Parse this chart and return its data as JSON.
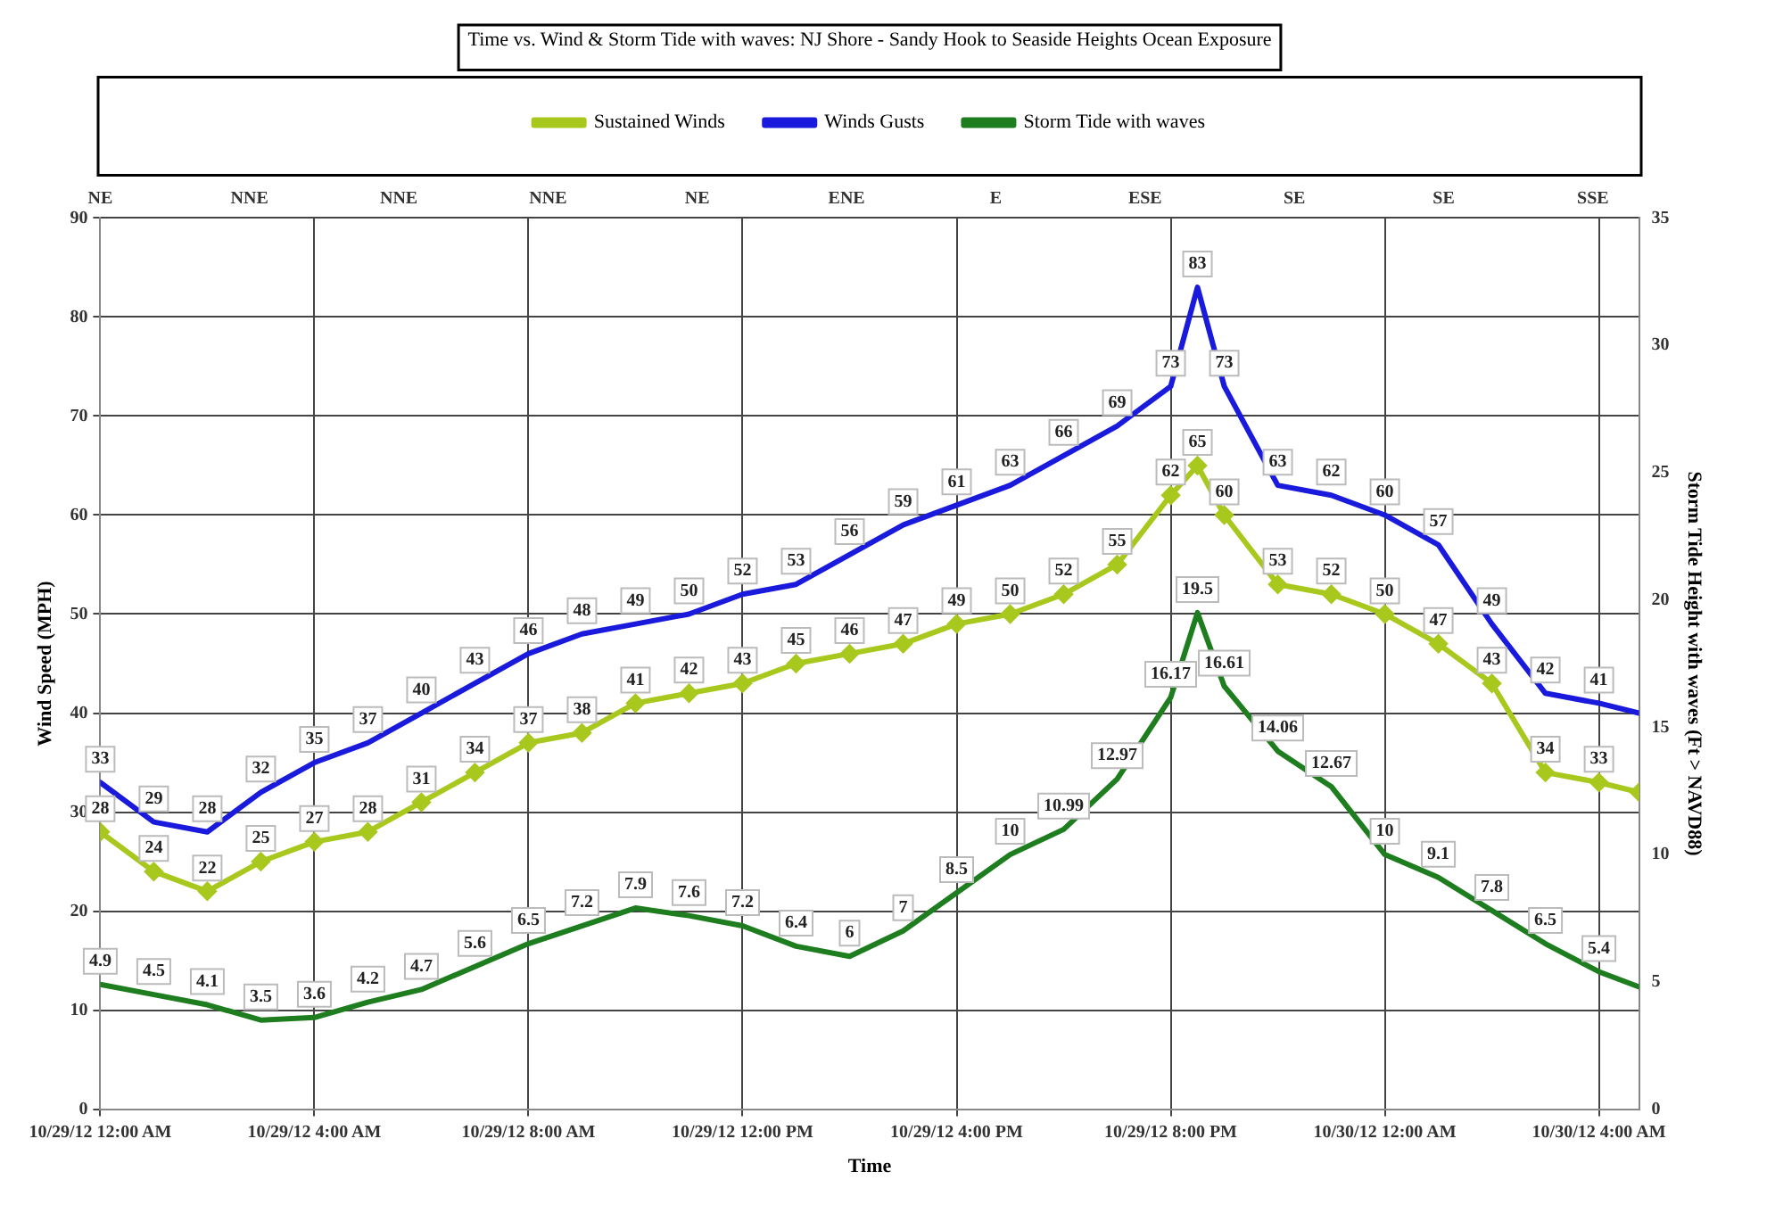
{
  "chart_data": {
    "type": "line",
    "title": "Time vs. Wind & Storm Tide with waves: NJ Shore - Sandy Hook to Seaside Heights Ocean Exposure",
    "xlabel": "Time",
    "ylabel": "Wind Speed (MPH)",
    "y2label": "Storm Tide Height with waves (Ft > NAVD88)",
    "x": [
      "--10-29T00:00",
      "--10-29T01:00",
      "--10-29T02:00",
      "--10-29T03:00",
      "--10-29T04:00",
      "--10-29T05:00",
      "--10-29T06:00",
      "--10-29T07:00",
      "--10-29T08:00",
      "--10-29T09:00",
      "--10-29T10:00",
      "--10-29T11:00",
      "--10-29T12:00",
      "--10-29T13:00",
      "--10-29T14:00",
      "--10-29T15:00",
      "--10-29T16:00",
      "--10-29T17:00",
      "--10-29T18:00",
      "--10-29T19:00",
      "--10-29T20:00",
      "--10-29T20:30",
      "--10-29T21:00",
      "--10-29T22:00",
      "--10-29T23:00",
      "--10-30T00:00",
      "--10-30T01:00",
      "--10-30T02:00",
      "--10-30T03:00",
      "--10-30T04:00",
      "--10-30T04:45"
    ],
    "xlim": [
      "--10-29T00:00",
      "--10-30T04:45"
    ],
    "xticks": [
      {
        "value": "--10-29T00:00",
        "label": "10/29/12 12:00 AM"
      },
      {
        "value": "--10-29T04:00",
        "label": "10/29/12 4:00 AM"
      },
      {
        "value": "--10-29T08:00",
        "label": "10/29/12 8:00 AM"
      },
      {
        "value": "--10-29T12:00",
        "label": "10/29/12 12:00 PM"
      },
      {
        "value": "--10-29T16:00",
        "label": "10/29/12 4:00 PM"
      },
      {
        "value": "--10-29T20:00",
        "label": "10/29/12 8:00 PM"
      },
      {
        "value": "--10-30T00:00",
        "label": "10/30/12 12:00 AM"
      },
      {
        "value": "--10-30T04:00",
        "label": "10/30/12 4:00 AM"
      }
    ],
    "annotations": [
      "NE",
      "NNE",
      "NNE",
      "NNE",
      "NE",
      "ENE",
      "E",
      "ESE",
      "SE",
      "SE",
      "SSE"
    ],
    "ylim": [
      0,
      90
    ],
    "yticks": [
      0,
      10,
      20,
      30,
      40,
      50,
      60,
      70,
      80,
      90
    ],
    "y2lim": [
      0,
      35
    ],
    "y2ticks": [
      0,
      5,
      10,
      15,
      20,
      25,
      30,
      35
    ],
    "series": [
      {
        "name": "Sustained Winds",
        "color": "#a8c81e",
        "marker": "diamond",
        "values": [
          28,
          24,
          22,
          25,
          27,
          28,
          31,
          34,
          37,
          38,
          41,
          42,
          43,
          45,
          46,
          47,
          49,
          50,
          52,
          55,
          62,
          65,
          60,
          53,
          52,
          50,
          47,
          43,
          34,
          33,
          32
        ],
        "value_labels": [
          "28",
          "24",
          "22",
          "25",
          "27",
          "28",
          "31",
          "34",
          "37",
          "38",
          "41",
          "42",
          "43",
          "45",
          "46",
          "47",
          "49",
          "50",
          "52",
          "55",
          "62",
          "65",
          "60",
          "53",
          "52",
          "50",
          "47",
          "43",
          "34",
          "33",
          null
        ]
      },
      {
        "name": "Winds Gusts",
        "color": "#1a1adc",
        "marker": "none",
        "values": [
          33,
          29,
          28,
          32,
          35,
          37,
          40,
          43,
          46,
          48,
          49,
          50,
          52,
          53,
          56,
          59,
          61,
          63,
          66,
          69,
          73,
          83,
          73,
          63,
          62,
          60,
          57,
          49,
          42,
          41,
          40
        ],
        "value_labels": [
          "33",
          "29",
          "28",
          "32",
          "35",
          "37",
          "40",
          "43",
          "46",
          "48",
          "49",
          "50",
          "52",
          "53",
          "56",
          "59",
          "61",
          "63",
          "66",
          "69",
          "73",
          "83",
          "73",
          "63",
          "62",
          "60",
          "57",
          "49",
          "42",
          "41",
          null
        ]
      },
      {
        "name": "Storm Tide with waves",
        "color": "#1e7d1e",
        "marker": "none",
        "axis": "y2",
        "values": [
          4.9,
          4.5,
          4.1,
          3.5,
          3.6,
          4.2,
          4.7,
          5.6,
          6.5,
          7.2,
          7.9,
          7.6,
          7.2,
          6.4,
          6,
          7,
          8.5,
          10,
          10.99,
          12.97,
          16.17,
          19.5,
          16.61,
          14.06,
          12.67,
          10,
          9.1,
          7.8,
          6.5,
          5.4,
          4.8
        ],
        "value_labels": [
          "4.9",
          "4.5",
          "4.1",
          "3.5",
          "3.6",
          "4.2",
          "4.7",
          "5.6",
          "6.5",
          "7.2",
          "7.9",
          "7.6",
          "7.2",
          "6.4",
          "6",
          "7",
          "8.5",
          "10",
          "10.99",
          "12.97",
          "16.17",
          "19.5",
          "16.61",
          "14.06",
          "12.67",
          "10",
          "9.1",
          "7.8",
          "6.5",
          "5.4",
          null
        ]
      }
    ],
    "legend": "top",
    "grid": true,
    "line_style": "solid"
  }
}
